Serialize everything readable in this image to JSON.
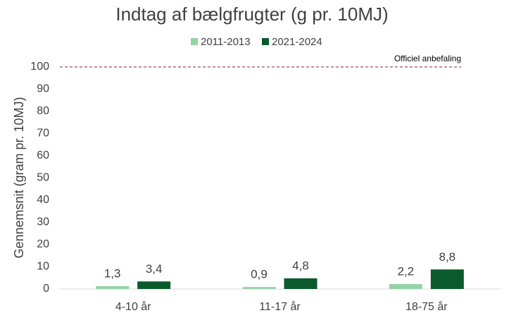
{
  "chart_data": {
    "type": "bar",
    "title": "Indtag af bælgfrugter (g pr. 10MJ)",
    "y_label": "Gennemsnit (gram pr. 10MJ)",
    "categories": [
      "4-10 år",
      "11-17 år",
      "18-75 år"
    ],
    "series": [
      {
        "name": "2011-2013",
        "color": "#93d3a5",
        "values": [
          1.3,
          0.9,
          2.2
        ],
        "value_labels": [
          "1,3",
          "0,9",
          "2,2"
        ]
      },
      {
        "name": "2021-2024",
        "color": "#0b5a2b",
        "values": [
          3.4,
          4.8,
          8.8
        ],
        "value_labels": [
          "3,4",
          "4,8",
          "8,8"
        ]
      }
    ],
    "ylim": [
      0,
      100
    ],
    "yticks": [
      0,
      10,
      20,
      30,
      40,
      50,
      60,
      70,
      80,
      90,
      100
    ],
    "grid": false,
    "legend": "top",
    "reference_line": {
      "value": 100,
      "label": "Officiel anbefaling",
      "color": "#8b1c3a"
    }
  }
}
